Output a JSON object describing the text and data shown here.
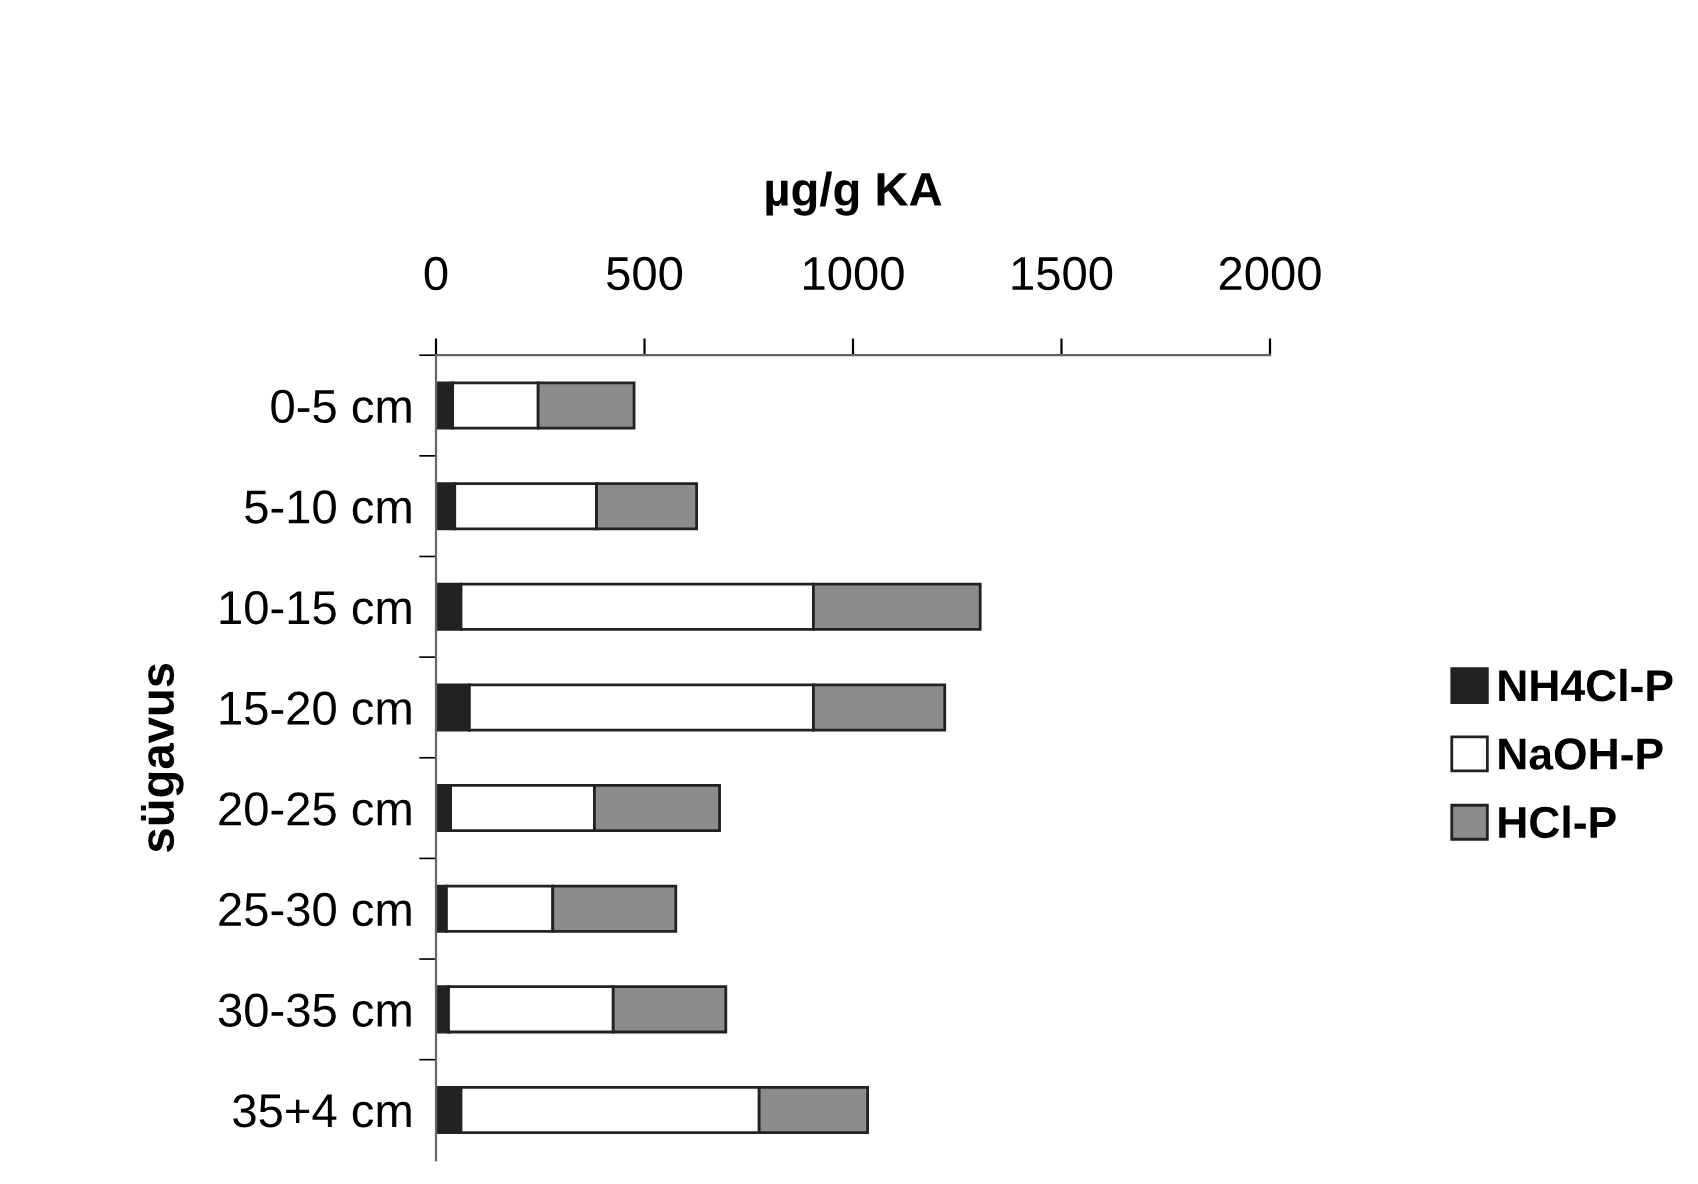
{
  "chart_data": {
    "type": "bar",
    "orientation": "horizontal",
    "stacked": true,
    "xlabel": "µg/g KA",
    "ylabel": "sügavus",
    "categories": [
      "0-5 cm",
      "5-10 cm",
      "10-15 cm",
      "15-20 cm",
      "20-25 cm",
      "25-30 cm",
      "30-35 cm",
      "35+4 cm"
    ],
    "series": [
      {
        "name": "NH4Cl-P",
        "color": "#222222",
        "values": [
          40,
          45,
          60,
          80,
          35,
          25,
          30,
          60
        ]
      },
      {
        "name": "NaOH-P",
        "color": "#ffffff",
        "values": [
          205,
          340,
          845,
          825,
          345,
          255,
          395,
          715
        ]
      },
      {
        "name": "HCl-P",
        "color": "#8c8c8c",
        "values": [
          230,
          240,
          400,
          315,
          300,
          295,
          270,
          260
        ]
      }
    ],
    "xlim": [
      0,
      2000
    ],
    "xticks": [
      0,
      500,
      1000,
      1500,
      2000
    ],
    "legend": "right",
    "grid": false
  }
}
